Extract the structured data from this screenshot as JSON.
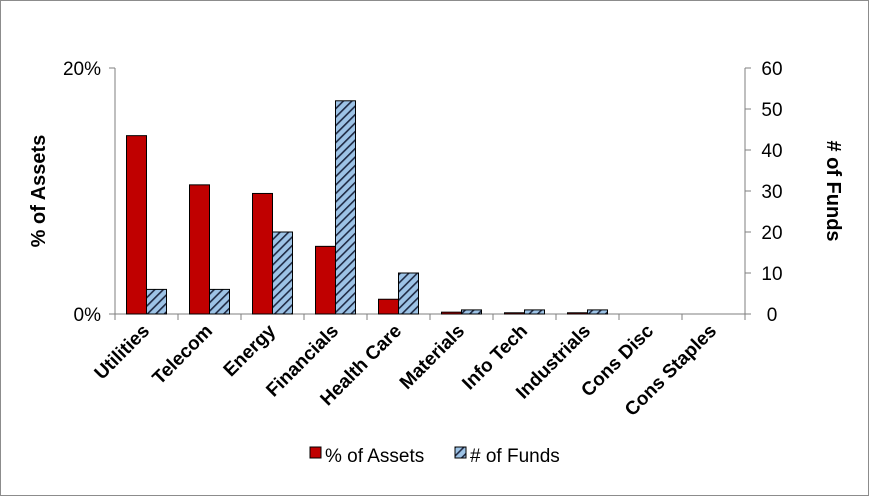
{
  "chart_data": {
    "type": "bar",
    "categories": [
      "Utilities",
      "Telecom",
      "Energy",
      "Financials",
      "Health Care",
      "Materials",
      "Info Tech",
      "Industrials",
      "Cons Disc",
      "Cons Staples"
    ],
    "series": [
      {
        "name": "% of Assets",
        "axis": "left",
        "color": "#c00000",
        "values": [
          14.5,
          10.5,
          9.8,
          5.5,
          1.2,
          0.15,
          0.1,
          0.1,
          0,
          0
        ]
      },
      {
        "name": "# of Funds",
        "axis": "right",
        "color": "#9dc3e6",
        "pattern": "diagonal-hatch",
        "values": [
          6,
          6,
          20,
          52,
          10,
          1,
          1,
          1,
          0,
          0
        ]
      }
    ],
    "ylabel": "% of Assets",
    "y2label": "# of Funds",
    "ylim": [
      0,
      20
    ],
    "y2lim": [
      0,
      60
    ],
    "yticks": [
      "0%",
      "20%"
    ],
    "y2ticks": [
      "0",
      "10",
      "20",
      "30",
      "40",
      "50",
      "60"
    ],
    "legend": "bottom",
    "grid": false
  }
}
